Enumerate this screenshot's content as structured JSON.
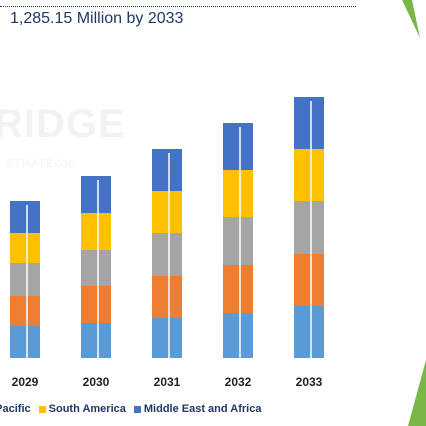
{
  "header": {
    "subtitle": "1,285.15 Million by 2033"
  },
  "watermark": {
    "main": "RIDGE",
    "sub": "STRATEGIC"
  },
  "legend": {
    "items": [
      {
        "label": "a Pacific",
        "color": "#ffc000"
      },
      {
        "label": "South America",
        "color": "#a5a5a5"
      },
      {
        "label": "Middle East and Africa",
        "color": "#4472c4"
      }
    ]
  },
  "colors": {
    "brand": "#1f3864",
    "accent": "#7ab648"
  },
  "chart_data": {
    "type": "bar",
    "stacked": true,
    "categories": [
      "2029",
      "2030",
      "2031",
      "2032",
      "2033"
    ],
    "series": [
      {
        "color": "#5b9bd5",
        "values": [
          32,
          35,
          40,
          45,
          52
        ]
      },
      {
        "color": "#ed7d31",
        "values": [
          30,
          37,
          42,
          48,
          52
        ]
      },
      {
        "color": "#a5a5a5",
        "values": [
          33,
          36,
          43,
          48,
          53
        ]
      },
      {
        "color": "#ffc000",
        "values": [
          30,
          37,
          42,
          47,
          52
        ]
      },
      {
        "color": "#4472c4",
        "values": [
          32,
          37,
          42,
          47,
          52
        ]
      }
    ],
    "ylim": [
      0,
      270
    ],
    "grid": false,
    "legend_position": "bottom"
  }
}
